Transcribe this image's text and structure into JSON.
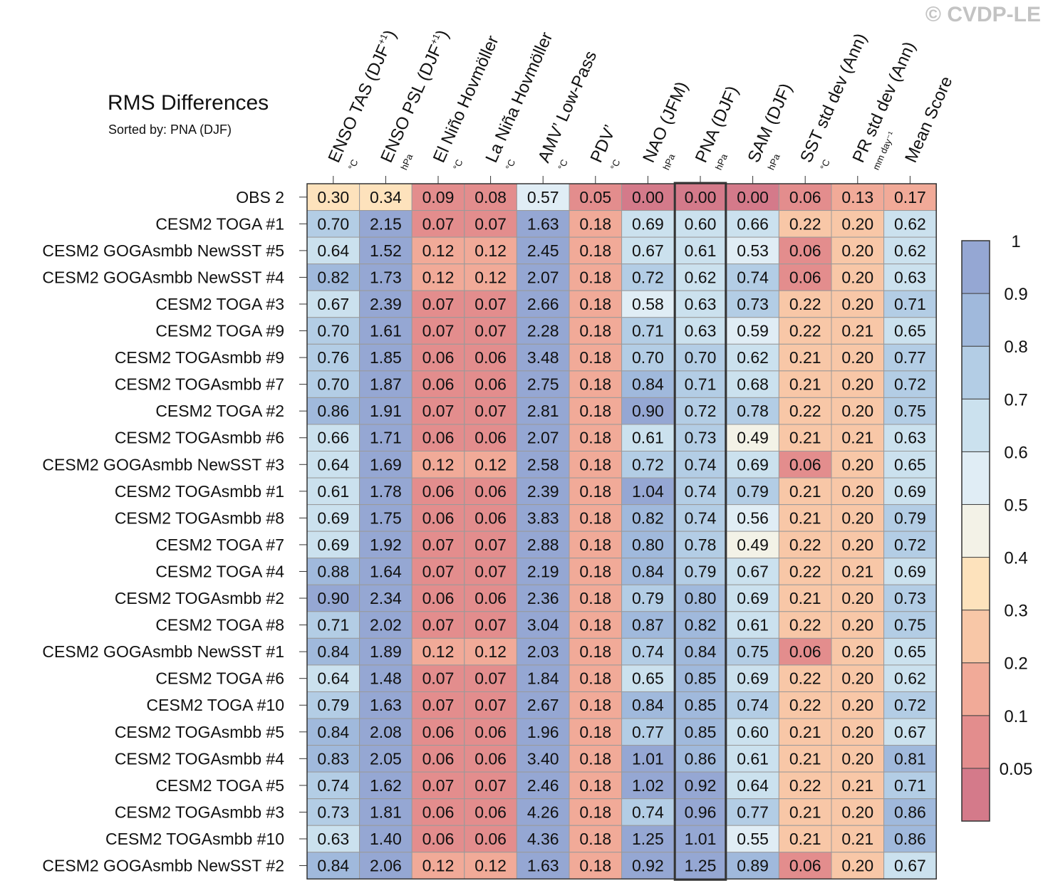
{
  "watermark": "© CVDP-LE",
  "chart_data": {
    "type": "heatmap",
    "title": "RMS Differences",
    "subtitle": "Sorted by: PNA (DJF)",
    "sorted_column": "PNA (DJF)",
    "columns": [
      {
        "name": "ENSO TAS (DJF",
        "sup": "+1",
        "close": ")",
        "unit": "°C"
      },
      {
        "name": "ENSO PSL (DJF",
        "sup": "+1",
        "close": ")",
        "unit": "hPa"
      },
      {
        "name": "El Niño Hovmöller",
        "sup": "",
        "close": "",
        "unit": "°C"
      },
      {
        "name": "La Niña Hovmöller",
        "sup": "",
        "close": "",
        "unit": "°C"
      },
      {
        "name": "AMV’ Low-Pass",
        "sup": "",
        "close": "",
        "unit": "°C"
      },
      {
        "name": "PDV’",
        "sup": "",
        "close": "",
        "unit": "°C"
      },
      {
        "name": "NAO (JFM)",
        "sup": "",
        "close": "",
        "unit": "hPa"
      },
      {
        "name": "PNA (DJF)",
        "sup": "",
        "close": "",
        "unit": "hPa"
      },
      {
        "name": "SAM (DJF)",
        "sup": "",
        "close": "",
        "unit": "hPa"
      },
      {
        "name": "SST std dev (Ann)",
        "sup": "",
        "close": "",
        "unit": "°C"
      },
      {
        "name": "PR std dev (Ann)",
        "sup": "",
        "close": "",
        "unit": "mm day⁻¹"
      },
      {
        "name": "Mean Score",
        "sup": "",
        "close": "",
        "unit": ""
      }
    ],
    "rows": [
      {
        "label": "OBS 2",
        "values": [
          "0.30",
          "0.34",
          "0.09",
          "0.08",
          "0.57",
          "0.05",
          "0.00",
          "0.00",
          "0.00",
          "0.06",
          "0.13",
          "0.17"
        ]
      },
      {
        "label": "CESM2 TOGA #1",
        "values": [
          "0.70",
          "2.15",
          "0.07",
          "0.07",
          "1.63",
          "0.18",
          "0.69",
          "0.60",
          "0.66",
          "0.22",
          "0.20",
          "0.62"
        ]
      },
      {
        "label": "CESM2 GOGAsmbb NewSST #5",
        "values": [
          "0.64",
          "1.52",
          "0.12",
          "0.12",
          "2.45",
          "0.18",
          "0.67",
          "0.61",
          "0.53",
          "0.06",
          "0.20",
          "0.62"
        ]
      },
      {
        "label": "CESM2 GOGAsmbb NewSST #4",
        "values": [
          "0.82",
          "1.73",
          "0.12",
          "0.12",
          "2.07",
          "0.18",
          "0.72",
          "0.62",
          "0.74",
          "0.06",
          "0.20",
          "0.63"
        ]
      },
      {
        "label": "CESM2 TOGA #3",
        "values": [
          "0.67",
          "2.39",
          "0.07",
          "0.07",
          "2.66",
          "0.18",
          "0.58",
          "0.63",
          "0.73",
          "0.22",
          "0.20",
          "0.71"
        ]
      },
      {
        "label": "CESM2 TOGA #9",
        "values": [
          "0.70",
          "1.61",
          "0.07",
          "0.07",
          "2.28",
          "0.18",
          "0.71",
          "0.63",
          "0.59",
          "0.22",
          "0.21",
          "0.65"
        ]
      },
      {
        "label": "CESM2 TOGAsmbb #9",
        "values": [
          "0.76",
          "1.85",
          "0.06",
          "0.06",
          "3.48",
          "0.18",
          "0.70",
          "0.70",
          "0.62",
          "0.21",
          "0.20",
          "0.77"
        ]
      },
      {
        "label": "CESM2 TOGAsmbb #7",
        "values": [
          "0.70",
          "1.87",
          "0.06",
          "0.06",
          "2.75",
          "0.18",
          "0.84",
          "0.71",
          "0.68",
          "0.21",
          "0.20",
          "0.72"
        ]
      },
      {
        "label": "CESM2 TOGA #2",
        "values": [
          "0.86",
          "1.91",
          "0.07",
          "0.07",
          "2.81",
          "0.18",
          "0.90",
          "0.72",
          "0.78",
          "0.22",
          "0.20",
          "0.75"
        ]
      },
      {
        "label": "CESM2 TOGAsmbb #6",
        "values": [
          "0.66",
          "1.71",
          "0.06",
          "0.06",
          "2.07",
          "0.18",
          "0.61",
          "0.73",
          "0.49",
          "0.21",
          "0.21",
          "0.63"
        ]
      },
      {
        "label": "CESM2 GOGAsmbb NewSST #3",
        "values": [
          "0.64",
          "1.69",
          "0.12",
          "0.12",
          "2.58",
          "0.18",
          "0.72",
          "0.74",
          "0.69",
          "0.06",
          "0.20",
          "0.65"
        ]
      },
      {
        "label": "CESM2 TOGAsmbb #1",
        "values": [
          "0.61",
          "1.78",
          "0.06",
          "0.06",
          "2.39",
          "0.18",
          "1.04",
          "0.74",
          "0.79",
          "0.21",
          "0.20",
          "0.69"
        ]
      },
      {
        "label": "CESM2 TOGAsmbb #8",
        "values": [
          "0.69",
          "1.75",
          "0.06",
          "0.06",
          "3.83",
          "0.18",
          "0.82",
          "0.74",
          "0.56",
          "0.21",
          "0.20",
          "0.79"
        ]
      },
      {
        "label": "CESM2 TOGA #7",
        "values": [
          "0.69",
          "1.92",
          "0.07",
          "0.07",
          "2.88",
          "0.18",
          "0.80",
          "0.78",
          "0.49",
          "0.22",
          "0.20",
          "0.72"
        ]
      },
      {
        "label": "CESM2 TOGA #4",
        "values": [
          "0.88",
          "1.64",
          "0.07",
          "0.07",
          "2.19",
          "0.18",
          "0.84",
          "0.79",
          "0.67",
          "0.22",
          "0.21",
          "0.69"
        ]
      },
      {
        "label": "CESM2 TOGAsmbb #2",
        "values": [
          "0.90",
          "2.34",
          "0.06",
          "0.06",
          "2.36",
          "0.18",
          "0.79",
          "0.80",
          "0.69",
          "0.21",
          "0.20",
          "0.73"
        ]
      },
      {
        "label": "CESM2 TOGA #8",
        "values": [
          "0.71",
          "2.02",
          "0.07",
          "0.07",
          "3.04",
          "0.18",
          "0.87",
          "0.82",
          "0.61",
          "0.22",
          "0.20",
          "0.75"
        ]
      },
      {
        "label": "CESM2 GOGAsmbb NewSST #1",
        "values": [
          "0.84",
          "1.89",
          "0.12",
          "0.12",
          "2.03",
          "0.18",
          "0.74",
          "0.84",
          "0.75",
          "0.06",
          "0.20",
          "0.65"
        ]
      },
      {
        "label": "CESM2 TOGA #6",
        "values": [
          "0.64",
          "1.48",
          "0.07",
          "0.07",
          "1.84",
          "0.18",
          "0.65",
          "0.85",
          "0.69",
          "0.22",
          "0.20",
          "0.62"
        ]
      },
      {
        "label": "CESM2 TOGA #10",
        "values": [
          "0.79",
          "1.63",
          "0.07",
          "0.07",
          "2.67",
          "0.18",
          "0.84",
          "0.85",
          "0.74",
          "0.22",
          "0.20",
          "0.72"
        ]
      },
      {
        "label": "CESM2 TOGAsmbb #5",
        "values": [
          "0.84",
          "2.08",
          "0.06",
          "0.06",
          "1.96",
          "0.18",
          "0.77",
          "0.85",
          "0.60",
          "0.21",
          "0.20",
          "0.67"
        ]
      },
      {
        "label": "CESM2 TOGAsmbb #4",
        "values": [
          "0.83",
          "2.05",
          "0.06",
          "0.06",
          "3.40",
          "0.18",
          "1.01",
          "0.86",
          "0.61",
          "0.21",
          "0.20",
          "0.81"
        ]
      },
      {
        "label": "CESM2 TOGA #5",
        "values": [
          "0.74",
          "1.62",
          "0.07",
          "0.07",
          "2.46",
          "0.18",
          "1.02",
          "0.92",
          "0.64",
          "0.22",
          "0.21",
          "0.71"
        ]
      },
      {
        "label": "CESM2 TOGAsmbb #3",
        "values": [
          "0.73",
          "1.81",
          "0.06",
          "0.06",
          "4.26",
          "0.18",
          "0.74",
          "0.96",
          "0.77",
          "0.21",
          "0.20",
          "0.86"
        ]
      },
      {
        "label": "CESM2 TOGAsmbb #10",
        "values": [
          "0.63",
          "1.40",
          "0.06",
          "0.06",
          "4.36",
          "0.18",
          "1.25",
          "1.01",
          "0.55",
          "0.21",
          "0.21",
          "0.86"
        ]
      },
      {
        "label": "CESM2 GOGAsmbb NewSST #2",
        "values": [
          "0.84",
          "2.06",
          "0.12",
          "0.12",
          "1.63",
          "0.18",
          "0.92",
          "1.25",
          "0.89",
          "0.06",
          "0.20",
          "0.67"
        ]
      }
    ],
    "colorbar": {
      "levels": [
        0.05,
        0.1,
        0.2,
        0.3,
        0.4,
        0.5,
        0.6,
        0.7,
        0.8,
        0.9,
        1
      ],
      "labels": [
        "0.05",
        "0.1",
        "0.2",
        "0.3",
        "0.4",
        "0.5",
        "0.6",
        "0.7",
        "0.8",
        "0.9",
        "1"
      ],
      "colors": [
        "#d47a8a",
        "#e38d8d",
        "#f1aa98",
        "#f8c7a7",
        "#fde2bc",
        "#f3f2e7",
        "#e0edf5",
        "#cbe1ee",
        "#b3cde5",
        "#a0b9dc",
        "#95a7d3"
      ]
    }
  }
}
